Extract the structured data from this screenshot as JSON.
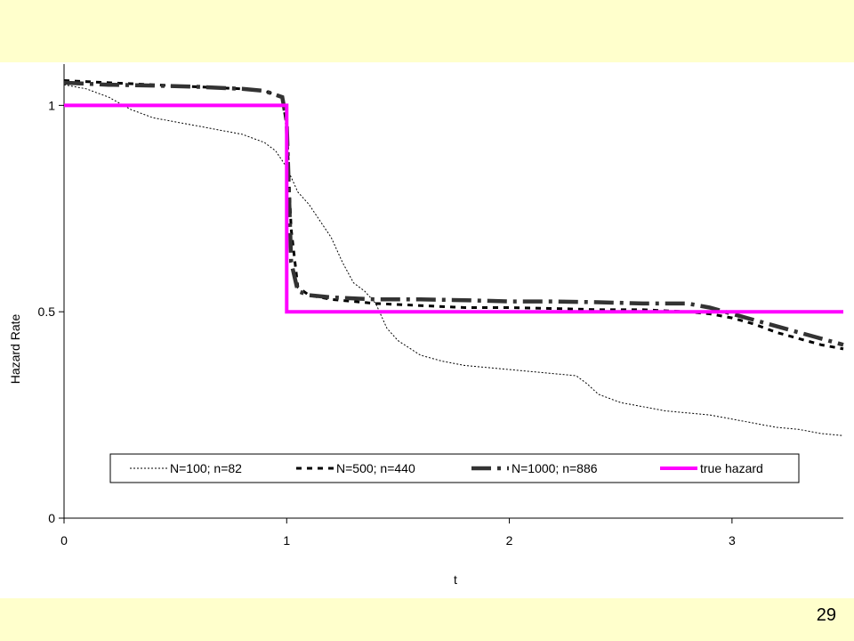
{
  "page": {
    "number": "29",
    "background": "#ffffcc",
    "plot_background": "#ffffff"
  },
  "chart_data": {
    "type": "line",
    "title": "",
    "xlabel": "t",
    "ylabel": "Hazard Rate",
    "xlim": [
      0,
      3.5
    ],
    "ylim": [
      0,
      1.1
    ],
    "xticks": [
      0,
      1,
      2,
      3
    ],
    "xtick_labels": [
      "0",
      "1",
      "2",
      "3"
    ],
    "yticks": [
      0,
      0.5,
      1
    ],
    "ytick_labels": [
      "0",
      "0.5",
      "1"
    ],
    "grid": false,
    "legend_placement": "bottom",
    "series": [
      {
        "name": "N=100; n=82",
        "color": "#000000",
        "style": "dotted",
        "x": [
          0,
          0.1,
          0.2,
          0.3,
          0.4,
          0.5,
          0.6,
          0.7,
          0.8,
          0.9,
          0.95,
          1.0,
          1.05,
          1.1,
          1.15,
          1.2,
          1.25,
          1.3,
          1.35,
          1.4,
          1.45,
          1.5,
          1.6,
          1.7,
          1.8,
          1.9,
          2.0,
          2.1,
          2.2,
          2.3,
          2.35,
          2.4,
          2.5,
          2.6,
          2.7,
          2.8,
          2.9,
          3.0,
          3.1,
          3.2,
          3.3,
          3.4,
          3.5
        ],
        "y": [
          1.05,
          1.04,
          1.02,
          0.99,
          0.97,
          0.96,
          0.95,
          0.94,
          0.93,
          0.91,
          0.89,
          0.85,
          0.79,
          0.76,
          0.72,
          0.68,
          0.62,
          0.57,
          0.55,
          0.52,
          0.46,
          0.43,
          0.395,
          0.38,
          0.37,
          0.365,
          0.36,
          0.355,
          0.35,
          0.345,
          0.325,
          0.3,
          0.28,
          0.27,
          0.26,
          0.255,
          0.25,
          0.24,
          0.23,
          0.22,
          0.215,
          0.205,
          0.2
        ]
      },
      {
        "name": "N=500; n=440",
        "color": "#000000",
        "style": "short-dash",
        "x": [
          0,
          0.2,
          0.4,
          0.6,
          0.8,
          0.9,
          0.98,
          1.0,
          1.02,
          1.05,
          1.1,
          1.2,
          1.4,
          1.6,
          1.8,
          2.0,
          2.2,
          2.4,
          2.6,
          2.8,
          2.9,
          3.0,
          3.1,
          3.2,
          3.3,
          3.4,
          3.5
        ],
        "y": [
          1.06,
          1.055,
          1.05,
          1.045,
          1.04,
          1.035,
          1.02,
          0.95,
          0.7,
          0.56,
          0.54,
          0.53,
          0.52,
          0.515,
          0.51,
          0.51,
          0.508,
          0.505,
          0.505,
          0.5,
          0.495,
          0.485,
          0.47,
          0.45,
          0.435,
          0.42,
          0.41
        ]
      },
      {
        "name": "N=1000; n=886",
        "color": "#333333",
        "style": "long-dash",
        "x": [
          0,
          0.2,
          0.4,
          0.6,
          0.8,
          0.9,
          0.98,
          1.0,
          1.02,
          1.05,
          1.1,
          1.2,
          1.4,
          1.6,
          1.8,
          2.0,
          2.2,
          2.4,
          2.6,
          2.8,
          2.9,
          3.0,
          3.1,
          3.2,
          3.3,
          3.4,
          3.5
        ],
        "y": [
          1.055,
          1.05,
          1.048,
          1.045,
          1.04,
          1.035,
          1.02,
          0.96,
          0.62,
          0.55,
          0.54,
          0.535,
          0.53,
          0.53,
          0.528,
          0.525,
          0.525,
          0.523,
          0.52,
          0.52,
          0.51,
          0.495,
          0.48,
          0.465,
          0.45,
          0.435,
          0.42
        ]
      },
      {
        "name": "true hazard",
        "color": "#ff00ff",
        "style": "solid-thick",
        "x": [
          0,
          1,
          1,
          3.5
        ],
        "y": [
          1,
          1,
          0.5,
          0.5
        ]
      }
    ]
  }
}
